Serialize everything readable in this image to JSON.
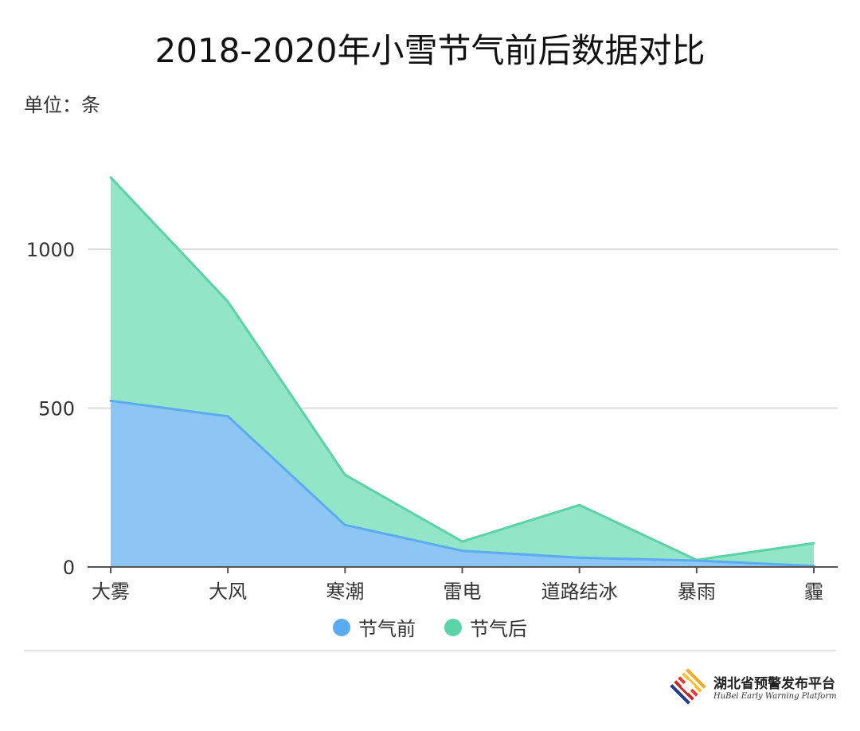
{
  "header": {
    "title": "2018-2020年小雪节气前后数据对比",
    "unit_label": "单位：条"
  },
  "chart_data": {
    "type": "area",
    "title": "2018-2020年小雪节气前后数据对比",
    "unit": "单位：条",
    "categories": [
      "大雾",
      "大风",
      "寒潮",
      "雷电",
      "道路结冰",
      "暴雨",
      "霾"
    ],
    "series": [
      {
        "name": "节气前",
        "values": [
          523,
          474,
          132,
          51,
          29,
          20,
          3
        ],
        "color": "#5aabf0",
        "fill": "#8dc6f5"
      },
      {
        "name": "节气后",
        "values": [
          1226,
          835,
          290,
          80,
          195,
          22,
          75
        ],
        "color": "#5ad3a7",
        "fill": "#93e5c8"
      }
    ],
    "y_ticks": [
      0,
      500,
      1000
    ],
    "ylim": [
      0,
      1300
    ],
    "grid": true,
    "legend_position": "bottom"
  },
  "legend": {
    "items": [
      {
        "label": "节气前",
        "color": "#5aabf0"
      },
      {
        "label": "节气后",
        "color": "#5ad3a7"
      }
    ]
  },
  "footer": {
    "logo_name_cn": "湖北省预警发布平台",
    "logo_name_en": "HuBei Early Warning Platform",
    "logo_icon": "diamond-stripes-logo-icon",
    "logo_colors": [
      "#e53935",
      "#f9a825",
      "#1e3a8a"
    ]
  }
}
